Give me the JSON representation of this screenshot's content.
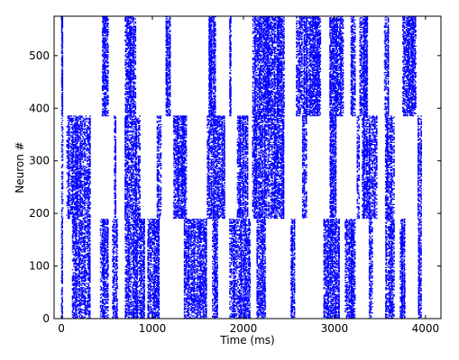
{
  "chart_data": {
    "type": "scatter",
    "subtype": "raster",
    "xlabel": "Time (ms)",
    "ylabel": "Neuron #",
    "xlim": [
      -80,
      4170
    ],
    "ylim": [
      0,
      575
    ],
    "xticks": [
      0,
      1000,
      2000,
      3000,
      4000
    ],
    "yticks": [
      0,
      100,
      200,
      300,
      400,
      500
    ],
    "grid": false,
    "marker_color": "#0000ff",
    "groups": [
      {
        "neuron_range": [
          0,
          190
        ],
        "activity_windows_ms": [
          [
            0,
            20
          ],
          [
            120,
            320
          ],
          [
            430,
            520
          ],
          [
            560,
            620
          ],
          [
            700,
            920
          ],
          [
            950,
            1080
          ],
          [
            1350,
            1600
          ],
          [
            1660,
            1720
          ],
          [
            1850,
            2080
          ],
          [
            2150,
            2250
          ],
          [
            2520,
            2570
          ],
          [
            2880,
            3060
          ],
          [
            3120,
            3230
          ],
          [
            3380,
            3420
          ],
          [
            3560,
            3660
          ],
          [
            3720,
            3780
          ],
          [
            3920,
            3960
          ]
        ]
      },
      {
        "neuron_range": [
          190,
          385
        ],
        "activity_windows_ms": [
          [
            0,
            20
          ],
          [
            60,
            320
          ],
          [
            580,
            600
          ],
          [
            700,
            870
          ],
          [
            1050,
            1100
          ],
          [
            1230,
            1380
          ],
          [
            1600,
            1800
          ],
          [
            1930,
            2050
          ],
          [
            2100,
            2450
          ],
          [
            2650,
            2700
          ],
          [
            2950,
            3020
          ],
          [
            3250,
            3280
          ],
          [
            3300,
            3470
          ],
          [
            3560,
            3660
          ],
          [
            3920,
            3960
          ]
        ]
      },
      {
        "neuron_range": [
          385,
          575
        ],
        "activity_windows_ms": [
          [
            0,
            20
          ],
          [
            450,
            520
          ],
          [
            700,
            820
          ],
          [
            1150,
            1200
          ],
          [
            1620,
            1700
          ],
          [
            1850,
            1870
          ],
          [
            2100,
            2450
          ],
          [
            2580,
            2850
          ],
          [
            2950,
            3100
          ],
          [
            3180,
            3230
          ],
          [
            3280,
            3370
          ],
          [
            3550,
            3600
          ],
          [
            3750,
            3900
          ]
        ]
      }
    ]
  }
}
